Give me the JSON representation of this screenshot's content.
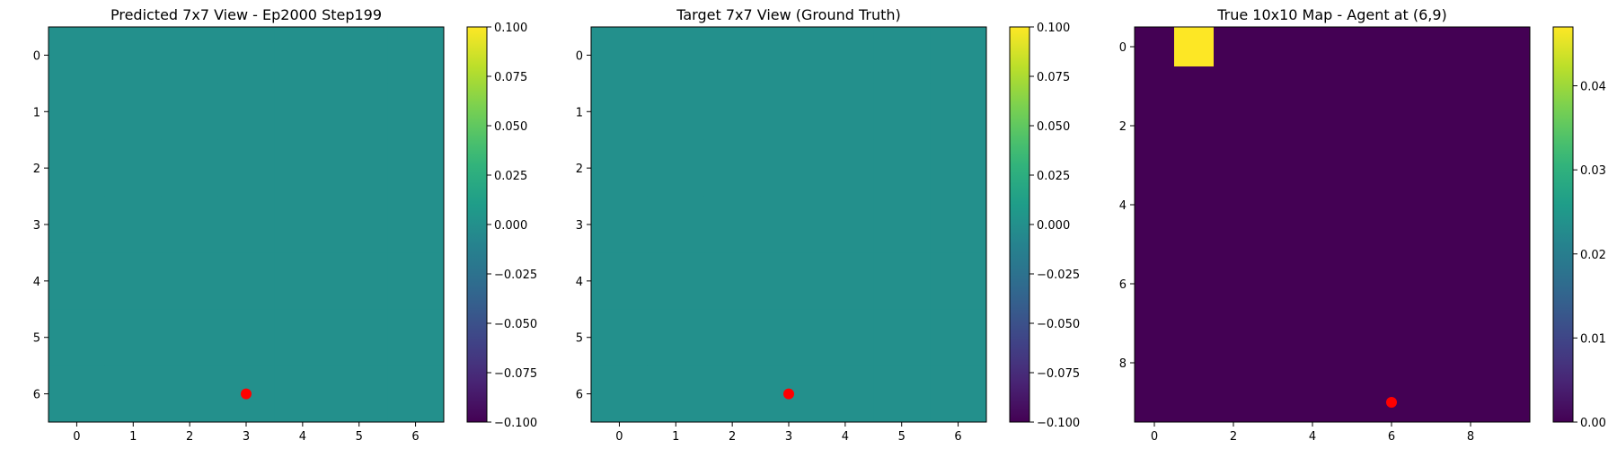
{
  "chart_data": [
    {
      "type": "heatmap",
      "title": "Predicted 7x7 View - Ep2000 Step199",
      "grid_size": [
        7,
        7
      ],
      "values": [
        [
          0,
          0,
          0,
          0,
          0,
          0,
          0
        ],
        [
          0,
          0,
          0,
          0,
          0,
          0,
          0
        ],
        [
          0,
          0,
          0,
          0,
          0,
          0,
          0
        ],
        [
          0,
          0,
          0,
          0,
          0,
          0,
          0
        ],
        [
          0,
          0,
          0,
          0,
          0,
          0,
          0
        ],
        [
          0,
          0,
          0,
          0,
          0,
          0,
          0
        ],
        [
          0,
          0,
          0,
          0,
          0,
          0,
          0
        ]
      ],
      "xticks": [
        "0",
        "1",
        "2",
        "3",
        "4",
        "5",
        "6"
      ],
      "yticks": [
        "0",
        "1",
        "2",
        "3",
        "4",
        "5",
        "6"
      ],
      "agent_marker": {
        "x": 3,
        "y": 6,
        "color": "#ff0000"
      },
      "colorbar": {
        "range": [
          -0.1,
          0.1
        ],
        "ticks": [
          "0.100",
          "0.075",
          "0.050",
          "0.025",
          "0.000",
          "−0.025",
          "−0.050",
          "−0.075",
          "−0.100"
        ],
        "colormap": "viridis"
      }
    },
    {
      "type": "heatmap",
      "title": "Target 7x7 View (Ground Truth)",
      "grid_size": [
        7,
        7
      ],
      "values": [
        [
          0,
          0,
          0,
          0,
          0,
          0,
          0
        ],
        [
          0,
          0,
          0,
          0,
          0,
          0,
          0
        ],
        [
          0,
          0,
          0,
          0,
          0,
          0,
          0
        ],
        [
          0,
          0,
          0,
          0,
          0,
          0,
          0
        ],
        [
          0,
          0,
          0,
          0,
          0,
          0,
          0
        ],
        [
          0,
          0,
          0,
          0,
          0,
          0,
          0
        ],
        [
          0,
          0,
          0,
          0,
          0,
          0,
          0
        ]
      ],
      "xticks": [
        "0",
        "1",
        "2",
        "3",
        "4",
        "5",
        "6"
      ],
      "yticks": [
        "0",
        "1",
        "2",
        "3",
        "4",
        "5",
        "6"
      ],
      "agent_marker": {
        "x": 3,
        "y": 6,
        "color": "#ff0000"
      },
      "colorbar": {
        "range": [
          -0.1,
          0.1
        ],
        "ticks": [
          "0.100",
          "0.075",
          "0.050",
          "0.025",
          "0.000",
          "−0.025",
          "−0.050",
          "−0.075",
          "−0.100"
        ],
        "colormap": "viridis"
      }
    },
    {
      "type": "heatmap",
      "title": "True 10x10 Map - Agent at (6,9)",
      "grid_size": [
        10,
        10
      ],
      "values": [
        [
          0,
          0.047,
          0,
          0,
          0,
          0,
          0,
          0,
          0,
          0
        ],
        [
          0,
          0,
          0,
          0,
          0,
          0,
          0,
          0,
          0,
          0
        ],
        [
          0,
          0,
          0,
          0,
          0,
          0,
          0,
          0,
          0,
          0
        ],
        [
          0,
          0,
          0,
          0,
          0,
          0,
          0,
          0,
          0,
          0
        ],
        [
          0,
          0,
          0,
          0,
          0,
          0,
          0,
          0,
          0,
          0
        ],
        [
          0,
          0,
          0,
          0,
          0,
          0,
          0,
          0,
          0,
          0
        ],
        [
          0,
          0,
          0,
          0,
          0,
          0,
          0,
          0,
          0,
          0
        ],
        [
          0,
          0,
          0,
          0,
          0,
          0,
          0,
          0,
          0,
          0
        ],
        [
          0,
          0,
          0,
          0,
          0,
          0,
          0,
          0,
          0,
          0
        ],
        [
          0,
          0,
          0,
          0,
          0,
          0,
          0,
          0,
          0,
          0
        ]
      ],
      "xticks": [
        "0",
        "2",
        "4",
        "6",
        "8"
      ],
      "yticks": [
        "0",
        "2",
        "4",
        "6",
        "8"
      ],
      "agent_marker": {
        "x": 6,
        "y": 9,
        "color": "#ff0000"
      },
      "colorbar": {
        "range": [
          0,
          0.047
        ],
        "ticks": [
          "0.04",
          "0.03",
          "0.02",
          "0.01",
          "0.00"
        ],
        "colormap": "viridis"
      }
    }
  ]
}
